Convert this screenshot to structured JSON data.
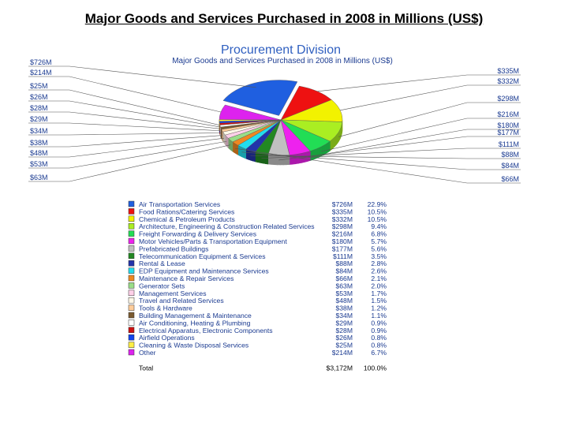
{
  "slide": {
    "title": "Major Goods and Services Purchased in 2008 in Millions (US$)"
  },
  "chart_data": {
    "type": "pie",
    "title": "Procurement Division",
    "subtitle": "Major Goods and Services Purchased in 2008 in Millions (US$)",
    "unit": "US$ millions",
    "items": [
      {
        "name": "Air Transportation Services",
        "value_label": "$726M",
        "percent_label": "22.9%",
        "value": 726,
        "color": "#1f5fe0"
      },
      {
        "name": "Food Rations/Catering Services",
        "value_label": "$335M",
        "percent_label": "10.5%",
        "value": 335,
        "color": "#ee1111"
      },
      {
        "name": "Chemical & Petroleum Products",
        "value_label": "$332M",
        "percent_label": "10.5%",
        "value": 332,
        "color": "#f2f200"
      },
      {
        "name": "Architecture, Engineering & Construction Related Services",
        "value_label": "$298M",
        "percent_label": "9.4%",
        "value": 298,
        "color": "#aaee22"
      },
      {
        "name": "Freight Forwarding & Delivery Services",
        "value_label": "$216M",
        "percent_label": "6.8%",
        "value": 216,
        "color": "#22dd55"
      },
      {
        "name": "Motor Vehicles/Parts & Transportation Equipment",
        "value_label": "$180M",
        "percent_label": "5.7%",
        "value": 180,
        "color": "#ee22ee"
      },
      {
        "name": "Prefabricated Buildings",
        "value_label": "$177M",
        "percent_label": "5.6%",
        "value": 177,
        "color": "#c0c0c0"
      },
      {
        "name": "Telecommunication Equipment & Services",
        "value_label": "$111M",
        "percent_label": "3.5%",
        "value": 111,
        "color": "#228822"
      },
      {
        "name": "Rental & Lease",
        "value_label": "$88M",
        "percent_label": "2.8%",
        "value": 88,
        "color": "#2233aa"
      },
      {
        "name": "EDP Equipment and Maintenance Services",
        "value_label": "$84M",
        "percent_label": "2.6%",
        "value": 84,
        "color": "#22ddee"
      },
      {
        "name": "Maintenance & Repair Services",
        "value_label": "$66M",
        "percent_label": "2.1%",
        "value": 66,
        "color": "#ee8822"
      },
      {
        "name": "Generator Sets",
        "value_label": "$63M",
        "percent_label": "2.0%",
        "value": 63,
        "color": "#99dd88"
      },
      {
        "name": "Management Services",
        "value_label": "$53M",
        "percent_label": "1.7%",
        "value": 53,
        "color": "#ffd0e8"
      },
      {
        "name": "Travel and Related Services",
        "value_label": "$48M",
        "percent_label": "1.5%",
        "value": 48,
        "color": "#fff8e8"
      },
      {
        "name": "Tools & Hardware",
        "value_label": "$38M",
        "percent_label": "1.2%",
        "value": 38,
        "color": "#ffcc99"
      },
      {
        "name": "Building Management & Maintenance",
        "value_label": "$34M",
        "percent_label": "1.1%",
        "value": 34,
        "color": "#7a5a30"
      },
      {
        "name": "Air Conditioning, Heating & Plumbing",
        "value_label": "$29M",
        "percent_label": "0.9%",
        "value": 29,
        "color": "#ffffff"
      },
      {
        "name": "Electrical Apparatus, Electronic Components",
        "value_label": "$28M",
        "percent_label": "0.9%",
        "value": 28,
        "color": "#cc1111"
      },
      {
        "name": "Airfield Operations",
        "value_label": "$26M",
        "percent_label": "0.8%",
        "value": 26,
        "color": "#1144ee"
      },
      {
        "name": "Cleaning & Waste Disposal Services",
        "value_label": "$25M",
        "percent_label": "0.8%",
        "value": 25,
        "color": "#ffee44"
      },
      {
        "name": "Other",
        "value_label": "$214M",
        "percent_label": "6.7%",
        "value": 214,
        "color": "#dd22ee"
      }
    ],
    "total": {
      "name": "Total",
      "value_label": "$3,172M",
      "percent_label": "100.0%"
    }
  }
}
